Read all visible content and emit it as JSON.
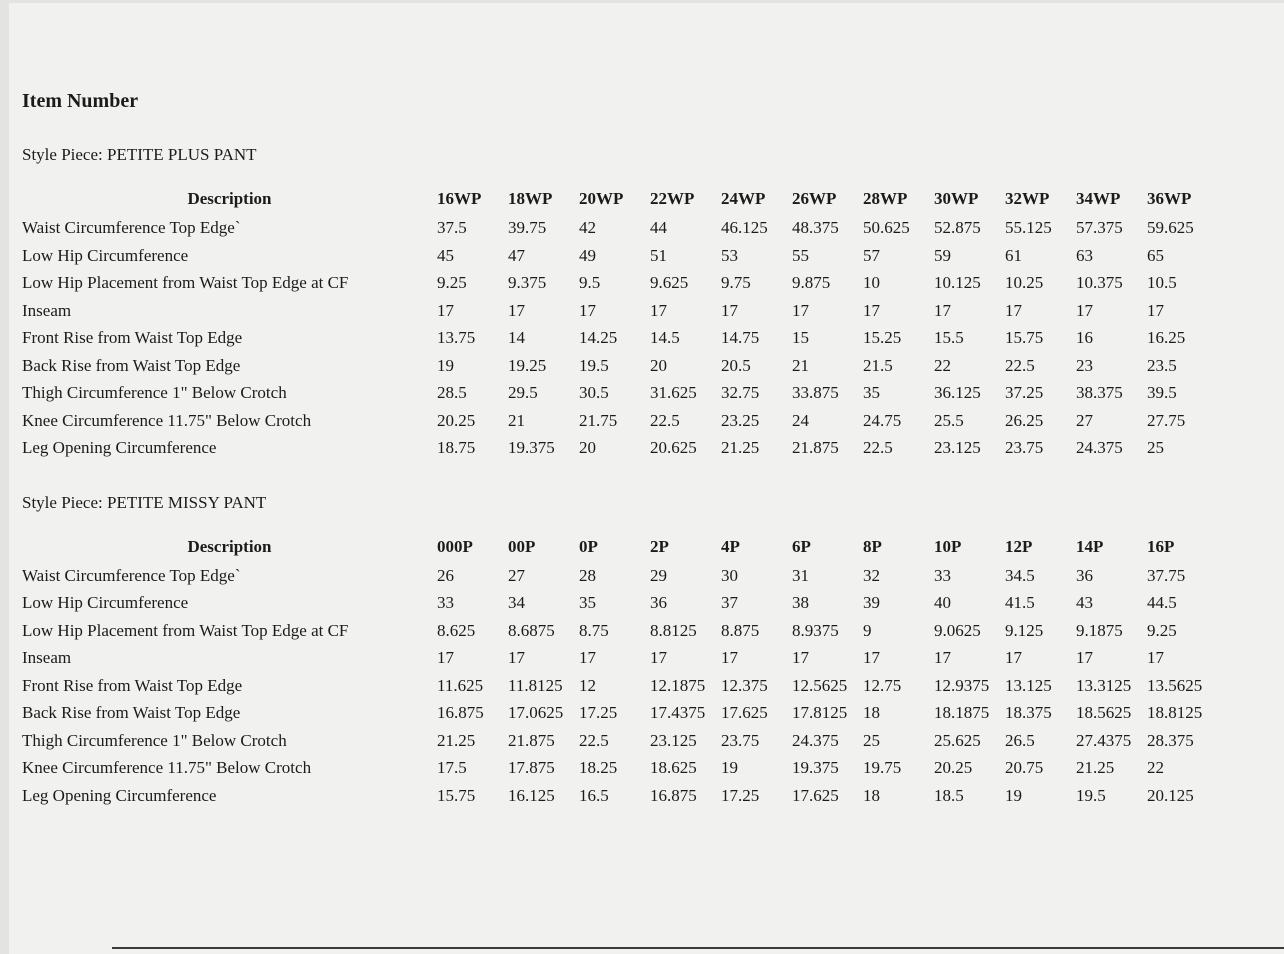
{
  "page": {
    "title": "Item Number"
  },
  "colors": {
    "bg": "#f1f1ef",
    "text": "#1b1b1b",
    "rule": "#3c3c3c",
    "edge": "#e3e3e1"
  },
  "tables": [
    {
      "style_piece_label": "Style Piece: PETITE PLUS PANT",
      "description_header": "Description",
      "sizes": [
        "16WP",
        "18WP",
        "20WP",
        "22WP",
        "24WP",
        "26WP",
        "28WP",
        "30WP",
        "32WP",
        "34WP",
        "36WP"
      ],
      "rows": [
        {
          "label": "Waist Circumference Top Edge`",
          "values": [
            "37.5",
            "39.75",
            "42",
            "44",
            "46.125",
            "48.375",
            "50.625",
            "52.875",
            "55.125",
            "57.375",
            "59.625"
          ]
        },
        {
          "label": "Low Hip Circumference",
          "values": [
            "45",
            "47",
            "49",
            "51",
            "53",
            "55",
            "57",
            "59",
            "61",
            "63",
            "65"
          ]
        },
        {
          "label": "Low Hip Placement from Waist Top Edge at CF",
          "values": [
            "9.25",
            "9.375",
            "9.5",
            "9.625",
            "9.75",
            "9.875",
            "10",
            "10.125",
            "10.25",
            "10.375",
            "10.5"
          ]
        },
        {
          "label": "Inseam",
          "values": [
            "17",
            "17",
            "17",
            "17",
            "17",
            "17",
            "17",
            "17",
            "17",
            "17",
            "17"
          ]
        },
        {
          "label": "Front Rise from Waist Top Edge",
          "values": [
            "13.75",
            "14",
            "14.25",
            "14.5",
            "14.75",
            "15",
            "15.25",
            "15.5",
            "15.75",
            "16",
            "16.25"
          ]
        },
        {
          "label": "Back Rise from Waist Top Edge",
          "values": [
            "19",
            "19.25",
            "19.5",
            "20",
            "20.5",
            "21",
            "21.5",
            "22",
            "22.5",
            "23",
            "23.5"
          ]
        },
        {
          "label": "Thigh Circumference 1\" Below Crotch",
          "values": [
            "28.5",
            "29.5",
            "30.5",
            "31.625",
            "32.75",
            "33.875",
            "35",
            "36.125",
            "37.25",
            "38.375",
            "39.5"
          ]
        },
        {
          "label": "Knee Circumference 11.75\" Below Crotch",
          "values": [
            "20.25",
            "21",
            "21.75",
            "22.5",
            "23.25",
            "24",
            "24.75",
            "25.5",
            "26.25",
            "27",
            "27.75"
          ]
        },
        {
          "label": "Leg Opening Circumference",
          "values": [
            "18.75",
            "19.375",
            "20",
            "20.625",
            "21.25",
            "21.875",
            "22.5",
            "23.125",
            "23.75",
            "24.375",
            "25"
          ]
        }
      ]
    },
    {
      "style_piece_label": "Style Piece: PETITE MISSY PANT",
      "description_header": "Description",
      "sizes": [
        "000P",
        "00P",
        "0P",
        "2P",
        "4P",
        "6P",
        "8P",
        "10P",
        "12P",
        "14P",
        "16P"
      ],
      "rows": [
        {
          "label": "Waist Circumference Top Edge`",
          "values": [
            "26",
            "27",
            "28",
            "29",
            "30",
            "31",
            "32",
            "33",
            "34.5",
            "36",
            "37.75"
          ]
        },
        {
          "label": "Low Hip Circumference",
          "values": [
            "33",
            "34",
            "35",
            "36",
            "37",
            "38",
            "39",
            "40",
            "41.5",
            "43",
            "44.5"
          ]
        },
        {
          "label": "Low Hip Placement from Waist Top Edge at CF",
          "values": [
            "8.625",
            "8.6875",
            "8.75",
            "8.8125",
            "8.875",
            "8.9375",
            "9",
            "9.0625",
            "9.125",
            "9.1875",
            "9.25"
          ]
        },
        {
          "label": "Inseam",
          "values": [
            "17",
            "17",
            "17",
            "17",
            "17",
            "17",
            "17",
            "17",
            "17",
            "17",
            "17"
          ]
        },
        {
          "label": "Front Rise from Waist Top Edge",
          "values": [
            "11.625",
            "11.8125",
            "12",
            "12.1875",
            "12.375",
            "12.5625",
            "12.75",
            "12.9375",
            "13.125",
            "13.3125",
            "13.5625"
          ]
        },
        {
          "label": "Back Rise from Waist Top Edge",
          "values": [
            "16.875",
            "17.0625",
            "17.25",
            "17.4375",
            "17.625",
            "17.8125",
            "18",
            "18.1875",
            "18.375",
            "18.5625",
            "18.8125"
          ]
        },
        {
          "label": "Thigh Circumference 1\" Below Crotch",
          "values": [
            "21.25",
            "21.875",
            "22.5",
            "23.125",
            "23.75",
            "24.375",
            "25",
            "25.625",
            "26.5",
            "27.4375",
            "28.375"
          ]
        },
        {
          "label": "Knee Circumference 11.75\" Below Crotch",
          "values": [
            "17.5",
            "17.875",
            "18.25",
            "18.625",
            "19",
            "19.375",
            "19.75",
            "20.25",
            "20.75",
            "21.25",
            "22"
          ]
        },
        {
          "label": "Leg Opening Circumference",
          "values": [
            "15.75",
            "16.125",
            "16.5",
            "16.875",
            "17.25",
            "17.625",
            "18",
            "18.5",
            "19",
            "19.5",
            "20.125"
          ]
        }
      ]
    }
  ]
}
